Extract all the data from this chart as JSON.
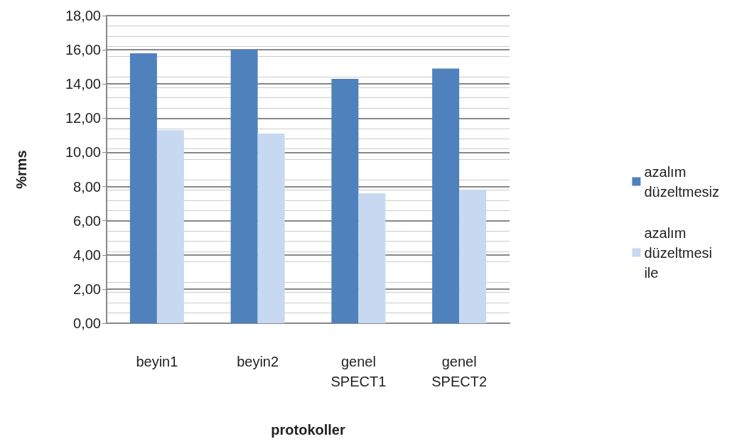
{
  "chart_data": {
    "type": "bar",
    "xlabel": "protokoller",
    "ylabel": "%rms",
    "categories": [
      "beyin1",
      "beyin2",
      "genel\nSPECT1",
      "genel\nSPECT2"
    ],
    "series": [
      {
        "name": "azalım\ndüzeltmesiz",
        "color": "#4f81bd",
        "values": [
          15.8,
          16.0,
          14.3,
          14.9
        ]
      },
      {
        "name": "azalım\ndüzeltmesi\nile",
        "color": "#c6d9f1",
        "values": [
          11.3,
          11.1,
          7.6,
          7.8
        ]
      }
    ],
    "ylim": [
      0,
      18
    ],
    "yticks": [
      {
        "value": 0,
        "label": "0,00"
      },
      {
        "value": 2,
        "label": "2,00"
      },
      {
        "value": 4,
        "label": "4,00"
      },
      {
        "value": 6,
        "label": "6,00"
      },
      {
        "value": 8,
        "label": "8,00"
      },
      {
        "value": 10,
        "label": "10,00"
      },
      {
        "value": 12,
        "label": "12,00"
      },
      {
        "value": 14,
        "label": "14,00"
      },
      {
        "value": 16,
        "label": "16,00"
      },
      {
        "value": 18,
        "label": "18,00"
      }
    ],
    "grid": true,
    "legend": "right"
  }
}
